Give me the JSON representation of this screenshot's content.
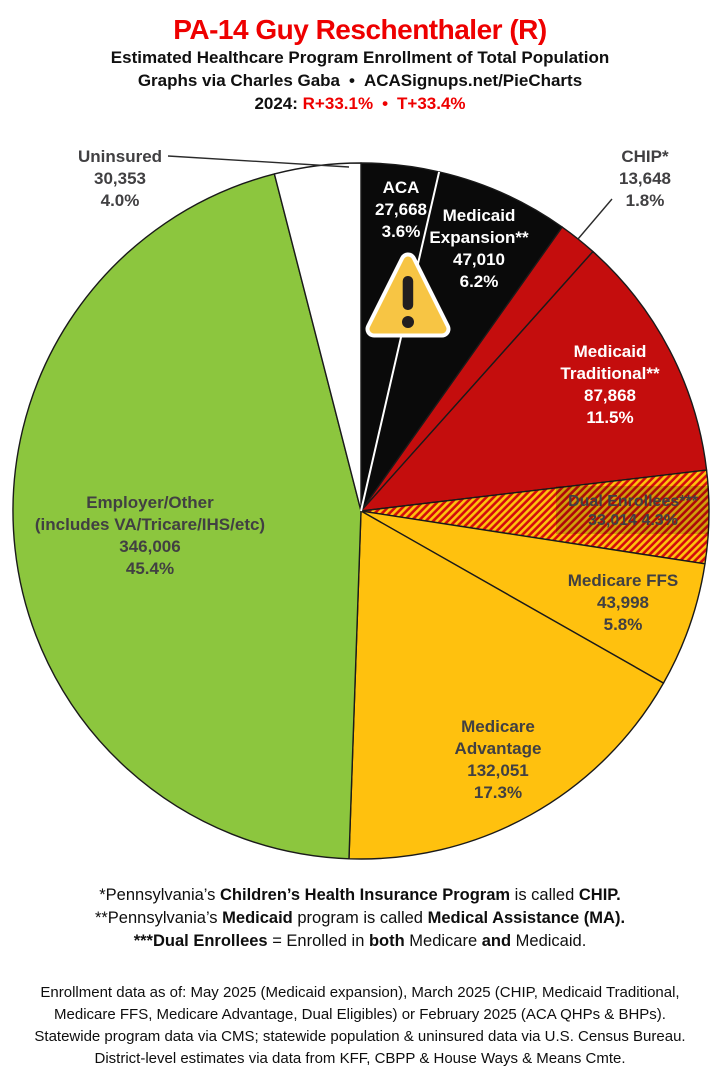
{
  "header": {
    "title": "PA-14 Guy Reschenthaler (R)",
    "subtitle": "Estimated Healthcare Program Enrollment of Total Population",
    "credit_left": "Graphs via Charles Gaba",
    "credit_bullet": "•",
    "credit_right": "ACASignups.net/PieCharts",
    "year_label": "2024:",
    "year_r": "R+33.1%",
    "year_bullet": "•",
    "year_t": "T+33.4%"
  },
  "colors": {
    "title_red": "#EE0000",
    "slice_black": "#0A0A0A",
    "slice_red": "#C40D0D",
    "slice_gold": "#FFC10E",
    "slice_green": "#8CC63E",
    "slice_white": "#FFFFFF",
    "hatch_red": "#D30B0B",
    "hatch_gold": "#FFC10E",
    "outline": "#1A1A1A",
    "label_gray": "#414042"
  },
  "chart_data": {
    "type": "pie",
    "title": "Estimated Healthcare Program Enrollment of Total Population",
    "units": "people",
    "start_angle_deg": 0,
    "direction": "clockwise",
    "legend_position": "none",
    "slices": [
      {
        "id": "aca",
        "name": "ACA",
        "value": 27668,
        "pct": 3.6,
        "fill": "#0A0A0A",
        "label_lines": [
          "ACA",
          "27,668",
          "3.6%"
        ]
      },
      {
        "id": "medicaid-expansion",
        "name": "Medicaid Expansion**",
        "value": 47010,
        "pct": 6.2,
        "fill": "#0A0A0A",
        "label_lines": [
          "Medicaid",
          "Expansion**",
          "47,010",
          "6.2%"
        ]
      },
      {
        "id": "chip",
        "name": "CHIP*",
        "value": 13648,
        "pct": 1.8,
        "fill": "#C40D0D",
        "label_lines": [
          "CHIP*",
          "13,648",
          "1.8%"
        ]
      },
      {
        "id": "medicaid-traditional",
        "name": "Medicaid Traditional**",
        "value": 87868,
        "pct": 11.5,
        "fill": "#C40D0D",
        "label_lines": [
          "Medicaid",
          "Traditional**",
          "87,868",
          "11.5%"
        ]
      },
      {
        "id": "dual-enrollees",
        "name": "Dual Enrollees***",
        "value": 33014,
        "pct": 4.3,
        "fill": "hatch",
        "label_lines": [
          "Dual Enrollees***",
          "33,014 4.3%"
        ]
      },
      {
        "id": "medicare-ffs",
        "name": "Medicare FFS",
        "value": 43998,
        "pct": 5.8,
        "fill": "#FFC10E",
        "label_lines": [
          "Medicare FFS",
          "43,998",
          "5.8%"
        ]
      },
      {
        "id": "medicare-advantage",
        "name": "Medicare Advantage",
        "value": 132051,
        "pct": 17.3,
        "fill": "#FFC10E",
        "label_lines": [
          "Medicare",
          "Advantage",
          "132,051",
          "17.3%"
        ]
      },
      {
        "id": "employer-other",
        "name": "Employer/Other (includes VA/Tricare/IHS/etc)",
        "value": 346006,
        "pct": 45.4,
        "fill": "#8CC63E",
        "label_lines": [
          "Employer/Other",
          "(includes VA/Tricare/IHS/etc)",
          "346,006",
          "45.4%"
        ]
      },
      {
        "id": "uninsured",
        "name": "Uninsured",
        "value": 30353,
        "pct": 4.0,
        "fill": "#FFFFFF",
        "label_lines": [
          "Uninsured",
          "30,353",
          "4.0%"
        ]
      }
    ]
  },
  "footnotes": [
    [
      {
        "t": "*Pennsylvania’s "
      },
      {
        "t": "Children’s Health Insurance Program",
        "b": true
      },
      {
        "t": " is called "
      },
      {
        "t": "CHIP.",
        "b": true
      }
    ],
    [
      {
        "t": "**Pennsylvania’s "
      },
      {
        "t": "Medicaid",
        "b": true
      },
      {
        "t": " program is called "
      },
      {
        "t": "Medical Assistance (MA).",
        "b": true
      }
    ],
    [
      {
        "t": "***Dual Enrollees",
        "b": true
      },
      {
        "t": " = Enrolled in "
      },
      {
        "t": "both",
        "b": true
      },
      {
        "t": " Medicare "
      },
      {
        "t": "and",
        "b": true
      },
      {
        "t": " Medicaid."
      }
    ]
  ],
  "footer": {
    "lines": [
      "Enrollment data as of: May 2025 (Medicaid expansion), March 2025 (CHIP, Medicaid Traditional,",
      "Medicare FFS, Medicare Advantage, Dual Eligibles) or February 2025 (ACA QHPs & BHPs).",
      "Statewide program data via CMS; statewide population & uninsured data via U.S. Census Bureau.",
      "District-level estimates via data from KFF, CBPP & House Ways & Means Cmte."
    ]
  }
}
